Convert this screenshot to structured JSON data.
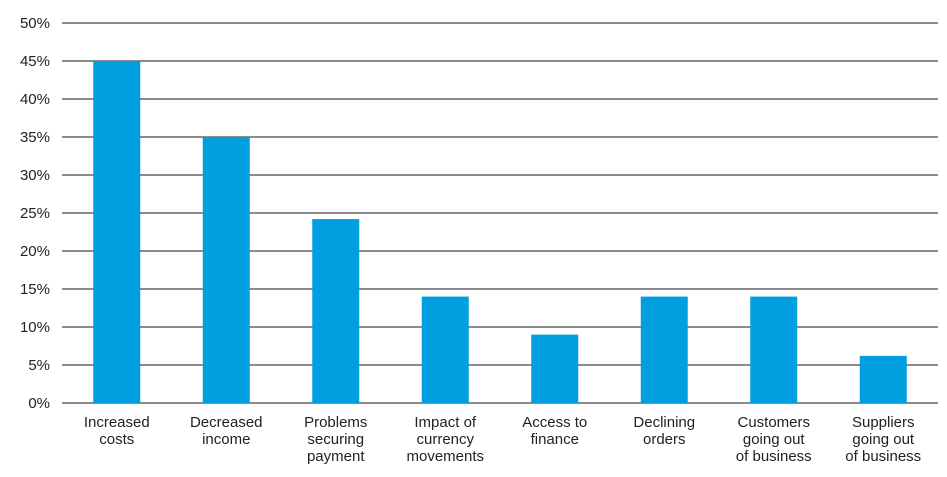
{
  "chart_data": {
    "type": "bar",
    "categories": [
      [
        "Increased",
        "costs"
      ],
      [
        "Decreased",
        "income"
      ],
      [
        "Problems",
        "securing",
        "payment"
      ],
      [
        "Impact of",
        "currency",
        "movements"
      ],
      [
        "Access to",
        "finance"
      ],
      [
        "Declining",
        "orders"
      ],
      [
        "Customers",
        "going out",
        "of business"
      ],
      [
        "Suppliers",
        "going out",
        "of business"
      ]
    ],
    "values": [
      45,
      35,
      24.2,
      14,
      9,
      14,
      14,
      6.2
    ],
    "yticks": [
      "0%",
      "5%",
      "10%",
      "15%",
      "20%",
      "25%",
      "30%",
      "35%",
      "40%",
      "45%",
      "50%"
    ],
    "ylim": [
      0,
      50
    ],
    "title": "",
    "xlabel": "",
    "ylabel": "",
    "grid": true,
    "colors": {
      "bar": "#009fe0",
      "grid": "#1a1a1a"
    }
  }
}
